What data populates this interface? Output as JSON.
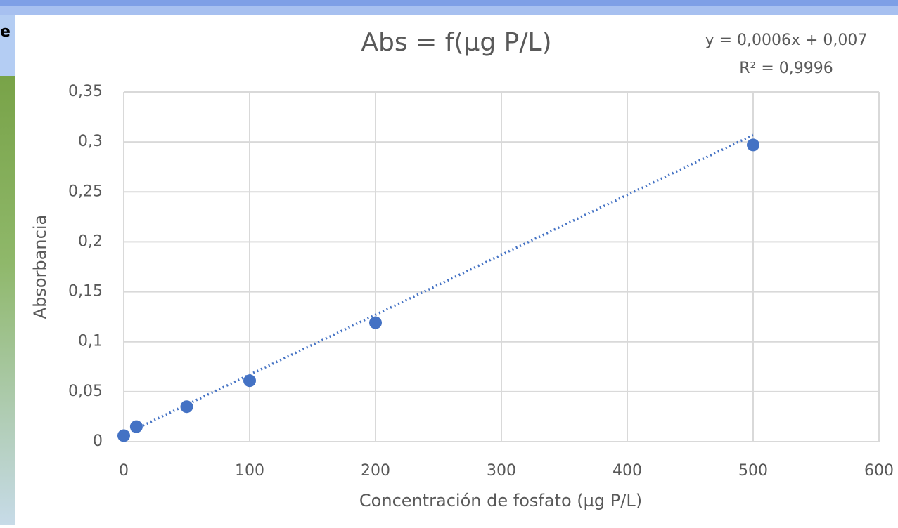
{
  "fragment": "e",
  "chart_data": {
    "type": "scatter",
    "title": "Abs = f(µg P/L)",
    "x_label": "Concentración de fosfato (µg P/L)",
    "y_label": "Absorbancia",
    "series": [
      {
        "name": "Absorbancia",
        "color": "#4472c4",
        "x": [
          0,
          10,
          50,
          100,
          200,
          500
        ],
        "values": [
          0.006,
          0.015,
          0.035,
          0.061,
          0.119,
          0.297
        ]
      }
    ],
    "trendline": {
      "slope": 0.0006,
      "intercept": 0.007,
      "equation": "y = 0,0006x + 0,007",
      "r2": "R² = 0,9996"
    },
    "xlim": [
      0,
      600
    ],
    "xticks": [
      0,
      100,
      200,
      300,
      400,
      500,
      600
    ],
    "ylim": [
      0,
      0.35
    ],
    "yticks": [
      0,
      {
        "value": 0.05,
        "label": "0,05"
      },
      {
        "value": 0.1,
        "label": "0,1"
      },
      {
        "value": 0.15,
        "label": "0,15"
      },
      {
        "value": 0.2,
        "label": "0,2"
      },
      {
        "value": 0.25,
        "label": "0,25"
      },
      {
        "value": 0.3,
        "label": "0,3"
      },
      {
        "value": 0.35,
        "label": "0,35"
      }
    ],
    "grid": true
  }
}
